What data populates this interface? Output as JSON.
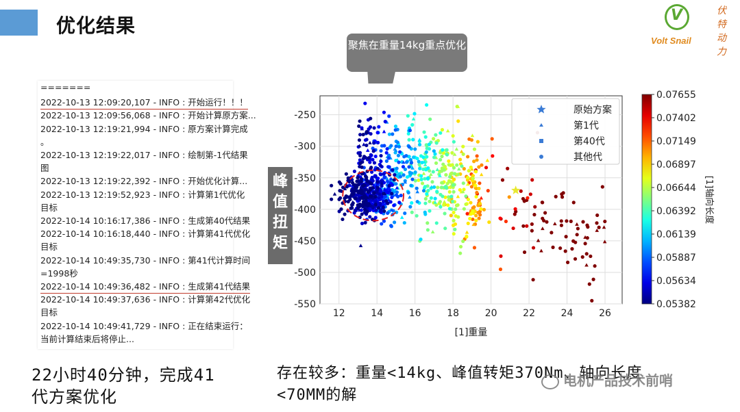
{
  "header": {
    "title": "优化结果"
  },
  "logo": {
    "brand": "Volt Snail",
    "mark": "V",
    "cn": [
      "伏",
      "特",
      "动",
      "力"
    ]
  },
  "log": [
    {
      "text": "=======",
      "red": false
    },
    {
      "text": "2022-10-13 12:09:20,107 - INFO : 开始运行！！！",
      "red": true
    },
    {
      "text": "2022-10-13 12:09:56,068 - INFO : 开始计算原方案...",
      "red": false
    },
    {
      "text": "2022-10-13 12:19:21,994 - INFO : 原方案计算完成",
      "red": false
    },
    {
      "text": "。",
      "red": false
    },
    {
      "text": "2022-10-13 12:19:22,017 - INFO : 绘制第-1代结果",
      "red": false
    },
    {
      "text": "图",
      "red": false
    },
    {
      "text": "2022-10-13 12:19:22,392 - INFO : 开始优化计算...",
      "red": false
    },
    {
      "text": "2022-10-13 12:19:52,923 - INFO :  计算第1代优化",
      "red": false
    },
    {
      "text": "目标",
      "red": false
    },
    {
      "text": "2022-10-14 10:16:17,386 - INFO : 生成第40代结果",
      "red": false
    },
    {
      "text": "2022-10-14 10:16:18,440 - INFO :  计算第41代优化",
      "red": false
    },
    {
      "text": "目标",
      "red": false
    },
    {
      "text": "2022-10-14 10:49:35,730 - INFO :  第41代计算时间",
      "red": false
    },
    {
      "text": "=1998秒",
      "red": false
    },
    {
      "text": "2022-10-14 10:49:36,482 - INFO : 生成第41代结果",
      "red": true
    },
    {
      "text": "2022-10-14 10:49:37,636 - INFO :  计算第42代优化",
      "red": false
    },
    {
      "text": "目标",
      "red": false
    },
    {
      "text": "2022-10-14 10:49:41,729 - INFO : 正在结束运行：",
      "red": false
    },
    {
      "text": "当前计算结束后将停止...",
      "red": false
    }
  ],
  "callout": {
    "text": "聚焦在重量14kg重点优化"
  },
  "ylabel_box": {
    "text": "峰值扭矩"
  },
  "chart_data": {
    "type": "scatter",
    "xlabel": "[1]重量",
    "ylabel": "峰值扭矩",
    "colorbar_label": "[1]轴向长度",
    "xlim": [
      11,
      26.9
    ],
    "ylim": [
      -550,
      -220
    ],
    "xticks": [
      12,
      14,
      16,
      18,
      20,
      22,
      24,
      26
    ],
    "yticks": [
      -250,
      -300,
      -350,
      -400,
      -450,
      -500,
      -550
    ],
    "colorbar_ticks": [
      "0.07655",
      "0.07402",
      "0.07149",
      "0.06897",
      "0.06644",
      "0.06392",
      "0.06139",
      "0.05887",
      "0.05634",
      "0.05382"
    ],
    "colorbar_range": [
      0.05382,
      0.07655
    ],
    "grid": true,
    "legend_position": "top-right",
    "legend": [
      {
        "label": "原始方案",
        "marker": "star"
      },
      {
        "label": "第1代",
        "marker": "triangle"
      },
      {
        "label": "第40代",
        "marker": "square"
      },
      {
        "label": "其他代",
        "marker": "circle"
      }
    ],
    "original_point": {
      "x": 21.3,
      "y": -370,
      "color": "#e8e830"
    },
    "highlight_ellipse": {
      "cx": 13.8,
      "cy": -378,
      "rx": 1.6,
      "ry": 40
    },
    "points_note": "dense cloud: ~14kg low torque (blue) spreading to ~26kg high torque (red)"
  },
  "bottom": {
    "left_line1": "22小时40分钟，完成41",
    "left_line2": "代方案优化",
    "right_line1": "存在较多：重量<14kg、峰值转矩370Nm、轴向长度",
    "right_line2": "<70MM的解"
  },
  "watermark": {
    "text": "电机产品技术前哨"
  }
}
